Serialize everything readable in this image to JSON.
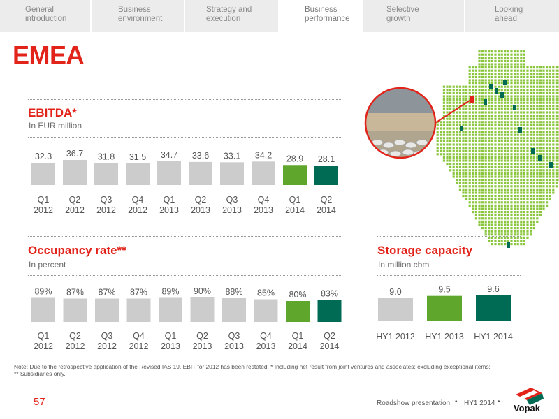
{
  "nav": {
    "tabs": [
      {
        "label": "General\nintroduction",
        "active": false
      },
      {
        "label": "Business\nenvironment",
        "active": false
      },
      {
        "label": "Strategy and\nexecution",
        "active": false
      },
      {
        "label": "Business\nperformance",
        "active": true
      },
      {
        "label": "Selective\ngrowth",
        "active": false
      },
      {
        "label": "Looking\nahead",
        "active": false
      }
    ]
  },
  "page": {
    "title": "EMEA"
  },
  "colors": {
    "accent": "#e2231a",
    "bar_grey": "#cccccc",
    "bar_light_green": "#5fa72c",
    "bar_dark_green": "#006b54",
    "map_dots": "#8cc63f"
  },
  "chart_data": [
    {
      "type": "bar",
      "title": "EBITDA*",
      "subtitle": "In EUR million",
      "categories": [
        [
          "Q1",
          "2012"
        ],
        [
          "Q2",
          "2012"
        ],
        [
          "Q3",
          "2012"
        ],
        [
          "Q4",
          "2012"
        ],
        [
          "Q1",
          "2013"
        ],
        [
          "Q2",
          "2013"
        ],
        [
          "Q3",
          "2013"
        ],
        [
          "Q4",
          "2013"
        ],
        [
          "Q1",
          "2014"
        ],
        [
          "Q2",
          "2014"
        ]
      ],
      "values": [
        32.3,
        36.7,
        31.8,
        31.5,
        34.7,
        33.6,
        33.1,
        34.2,
        28.9,
        28.1
      ],
      "labels": [
        "32.3",
        "36.7",
        "31.8",
        "31.5",
        "34.7",
        "33.6",
        "33.1",
        "34.2",
        "28.9",
        "28.1"
      ],
      "colors": [
        "#cccccc",
        "#cccccc",
        "#cccccc",
        "#cccccc",
        "#cccccc",
        "#cccccc",
        "#cccccc",
        "#cccccc",
        "#5fa72c",
        "#006b54"
      ],
      "ylim": [
        0,
        40
      ]
    },
    {
      "type": "bar",
      "title": "Occupancy rate**",
      "subtitle": "In percent",
      "categories": [
        [
          "Q1",
          "2012"
        ],
        [
          "Q2",
          "2012"
        ],
        [
          "Q3",
          "2012"
        ],
        [
          "Q4",
          "2012"
        ],
        [
          "Q1",
          "2013"
        ],
        [
          "Q2",
          "2013"
        ],
        [
          "Q3",
          "2013"
        ],
        [
          "Q4",
          "2013"
        ],
        [
          "Q1",
          "2014"
        ],
        [
          "Q2",
          "2014"
        ]
      ],
      "values": [
        89,
        87,
        87,
        87,
        89,
        90,
        88,
        85,
        80,
        83
      ],
      "labels": [
        "89%",
        "87%",
        "87%",
        "87%",
        "89%",
        "90%",
        "88%",
        "85%",
        "80%",
        "83%"
      ],
      "colors": [
        "#cccccc",
        "#cccccc",
        "#cccccc",
        "#cccccc",
        "#cccccc",
        "#cccccc",
        "#cccccc",
        "#cccccc",
        "#5fa72c",
        "#006b54"
      ],
      "ylim": [
        0,
        100
      ]
    },
    {
      "type": "bar",
      "title": "Storage capacity",
      "subtitle": "In million cbm",
      "categories": [
        [
          "HY1 2012"
        ],
        [
          "HY1 2013"
        ],
        [
          "HY1 2014"
        ]
      ],
      "values": [
        9.0,
        9.5,
        9.6
      ],
      "labels": [
        "9.0",
        "9.5",
        "9.6"
      ],
      "colors": [
        "#cccccc",
        "#5fa72c",
        "#006b54"
      ],
      "ylim": [
        0,
        10
      ]
    }
  ],
  "note": "Note: Due to the retrospective application of the Revised IAS 19, EBIT for 2012 has been restated; * Including net result from joint ventures and associates; excluding exceptional items;\n** Subsidiaries only.",
  "footer": {
    "page_number": "57",
    "presentation": "Roadshow presentation",
    "period": "HY1 2014",
    "brand": "Vopak"
  }
}
